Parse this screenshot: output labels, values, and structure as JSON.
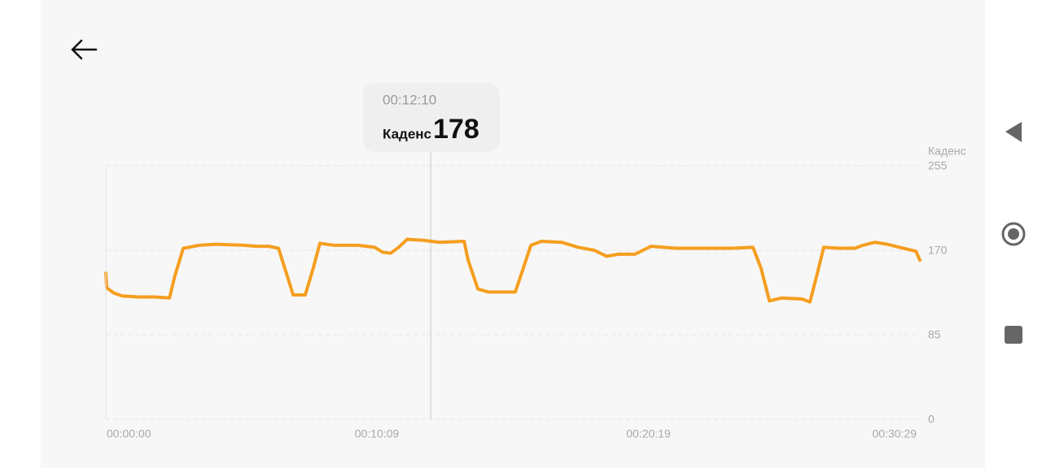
{
  "chart_data": {
    "type": "line",
    "y_axis_title": "Каденс",
    "x": [
      0,
      2,
      9,
      18,
      37,
      73,
      110,
      143,
      155,
      174,
      210,
      247,
      311,
      338,
      366,
      388,
      402,
      421,
      448,
      466,
      481,
      512,
      567,
      604,
      622,
      640,
      658,
      677,
      713,
      750,
      805,
      814,
      836,
      860,
      920,
      938,
      955,
      979,
      1024,
      1061,
      1097,
      1125,
      1152,
      1189,
      1225,
      1280,
      1335,
      1408,
      1454,
      1472,
      1491,
      1518,
      1564,
      1582,
      1597,
      1613,
      1646,
      1683,
      1701,
      1728,
      1756,
      1792,
      1820,
      1829
    ],
    "series": [
      {
        "name": "Каденс",
        "color": "#f59e1f",
        "values": [
          147,
          132,
          130,
          127,
          124,
          123,
          123,
          122,
          144,
          172,
          175,
          176,
          175,
          174,
          174,
          172,
          152,
          125,
          125,
          152,
          177,
          175,
          175,
          173,
          168,
          167,
          173,
          181,
          180,
          178,
          179,
          160,
          131,
          128,
          128,
          152,
          175,
          179,
          178,
          173,
          170,
          164,
          166,
          166,
          174,
          172,
          172,
          172,
          173,
          152,
          119,
          122,
          121,
          118,
          144,
          173,
          172,
          172,
          175,
          178,
          176,
          172,
          169,
          160
        ]
      }
    ],
    "xlim": [
      0,
      1829
    ],
    "xticks": [
      {
        "value": 0,
        "label": "00:00:00"
      },
      {
        "value": 609,
        "label": "00:10:09"
      },
      {
        "value": 1219,
        "label": "00:20:19"
      },
      {
        "value": 1829,
        "label": "00:30:29"
      }
    ],
    "ylim": [
      0,
      255
    ],
    "yticks": [
      0,
      85,
      170,
      255
    ],
    "grid": true,
    "tooltip": {
      "time": {
        "value": 730,
        "label": "00:12:10"
      },
      "label": "Каденс",
      "value": 178
    }
  }
}
